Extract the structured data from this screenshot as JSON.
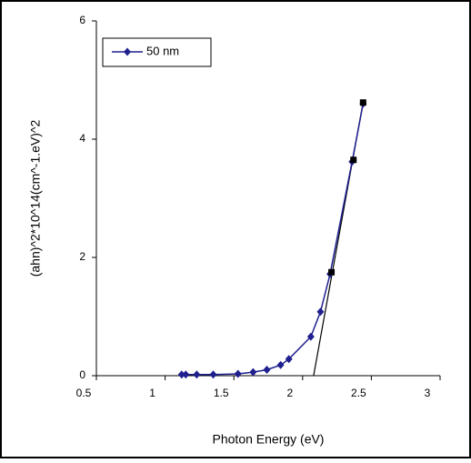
{
  "chart_data": {
    "type": "line",
    "x_label": "Photon Energy (eV)",
    "y_label": "(ahn)^2*10^14(cm^-1.eV)^2",
    "xlim": [
      0.5,
      3
    ],
    "xticks": [
      0.5,
      1,
      1.5,
      2,
      2.5,
      3
    ],
    "ylim": [
      0,
      6
    ],
    "yticks": [
      0,
      2,
      4,
      6
    ],
    "legend": "top-left",
    "series": [
      {
        "name": "50 nm",
        "color": "#1f1f8f",
        "x": [
          1.12,
          1.15,
          1.23,
          1.35,
          1.53,
          1.64,
          1.74,
          1.84,
          1.9,
          2.06,
          2.13,
          2.2,
          2.36,
          2.44
        ],
        "values": [
          0.02,
          0.02,
          0.02,
          0.02,
          0.03,
          0.06,
          0.1,
          0.18,
          0.28,
          0.66,
          1.08,
          1.72,
          3.62,
          4.6
        ]
      },
      {
        "color": "#000000",
        "marker": "square",
        "x": [
          2.21,
          2.37,
          2.44
        ],
        "values": [
          1.75,
          3.65,
          4.62
        ]
      }
    ],
    "fit_line": {
      "color": "#000000",
      "x": [
        2.08,
        2.44
      ],
      "values": [
        0,
        4.62
      ]
    }
  }
}
